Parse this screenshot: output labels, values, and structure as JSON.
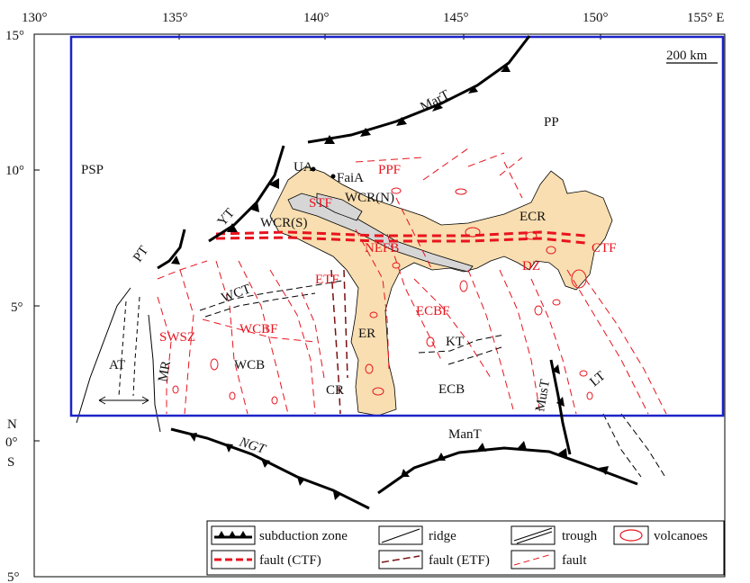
{
  "map": {
    "longitude_ticks": [
      "130°",
      "135°",
      "140°",
      "145°",
      "150°",
      "155° E"
    ],
    "latitude_ticks": [
      "15°",
      "10°",
      "5°",
      "0°",
      "5°"
    ],
    "hemisphere_north": "N",
    "hemisphere_south": "S",
    "scale_bar": "200 km",
    "colors": {
      "study_area_box": "#1c23c8",
      "land_fill": "#f8deb0",
      "fault_red": "#e8141e",
      "fault_etf": "#7a1010",
      "ridge_grey": "#d6d6d6"
    },
    "labels": {
      "PSP": "PSP",
      "PP": "PP",
      "MarT": "MarT",
      "YT": "YT",
      "PT": "PT",
      "UA": "UA",
      "FaiA": "FaiA",
      "PPF": "PPF",
      "STF": "STF",
      "WCR_N": "WCR(N)",
      "WCR_S": "WCR(S)",
      "ECR": "ECR",
      "CTF": "CTF",
      "NEFB": "NEFB",
      "DZ": "DZ",
      "ETF": "ETF",
      "WCT": "WCT",
      "ECBF": "ECBF",
      "SWSZ": "SWSZ",
      "WCBF": "WCBF",
      "ER": "ER",
      "KT": "KT",
      "AT": "AT",
      "MR": "MR",
      "WCB": "WCB",
      "CR": "CR",
      "ECB": "ECB",
      "MusT": "MusT",
      "LT": "LT",
      "ManT": "ManT",
      "NGT": "NGT"
    }
  },
  "legend": {
    "items": [
      {
        "label": "subduction zone",
        "icon": "subduction-zone-icon"
      },
      {
        "label": "ridge",
        "icon": "ridge-icon"
      },
      {
        "label": "trough",
        "icon": "trough-icon"
      },
      {
        "label": "volcanoes",
        "icon": "volcano-icon"
      },
      {
        "label": "fault (CTF)",
        "icon": "fault-ctf-icon"
      },
      {
        "label": "fault (ETF)",
        "icon": "fault-etf-icon"
      },
      {
        "label": "fault",
        "icon": "fault-icon"
      }
    ]
  }
}
